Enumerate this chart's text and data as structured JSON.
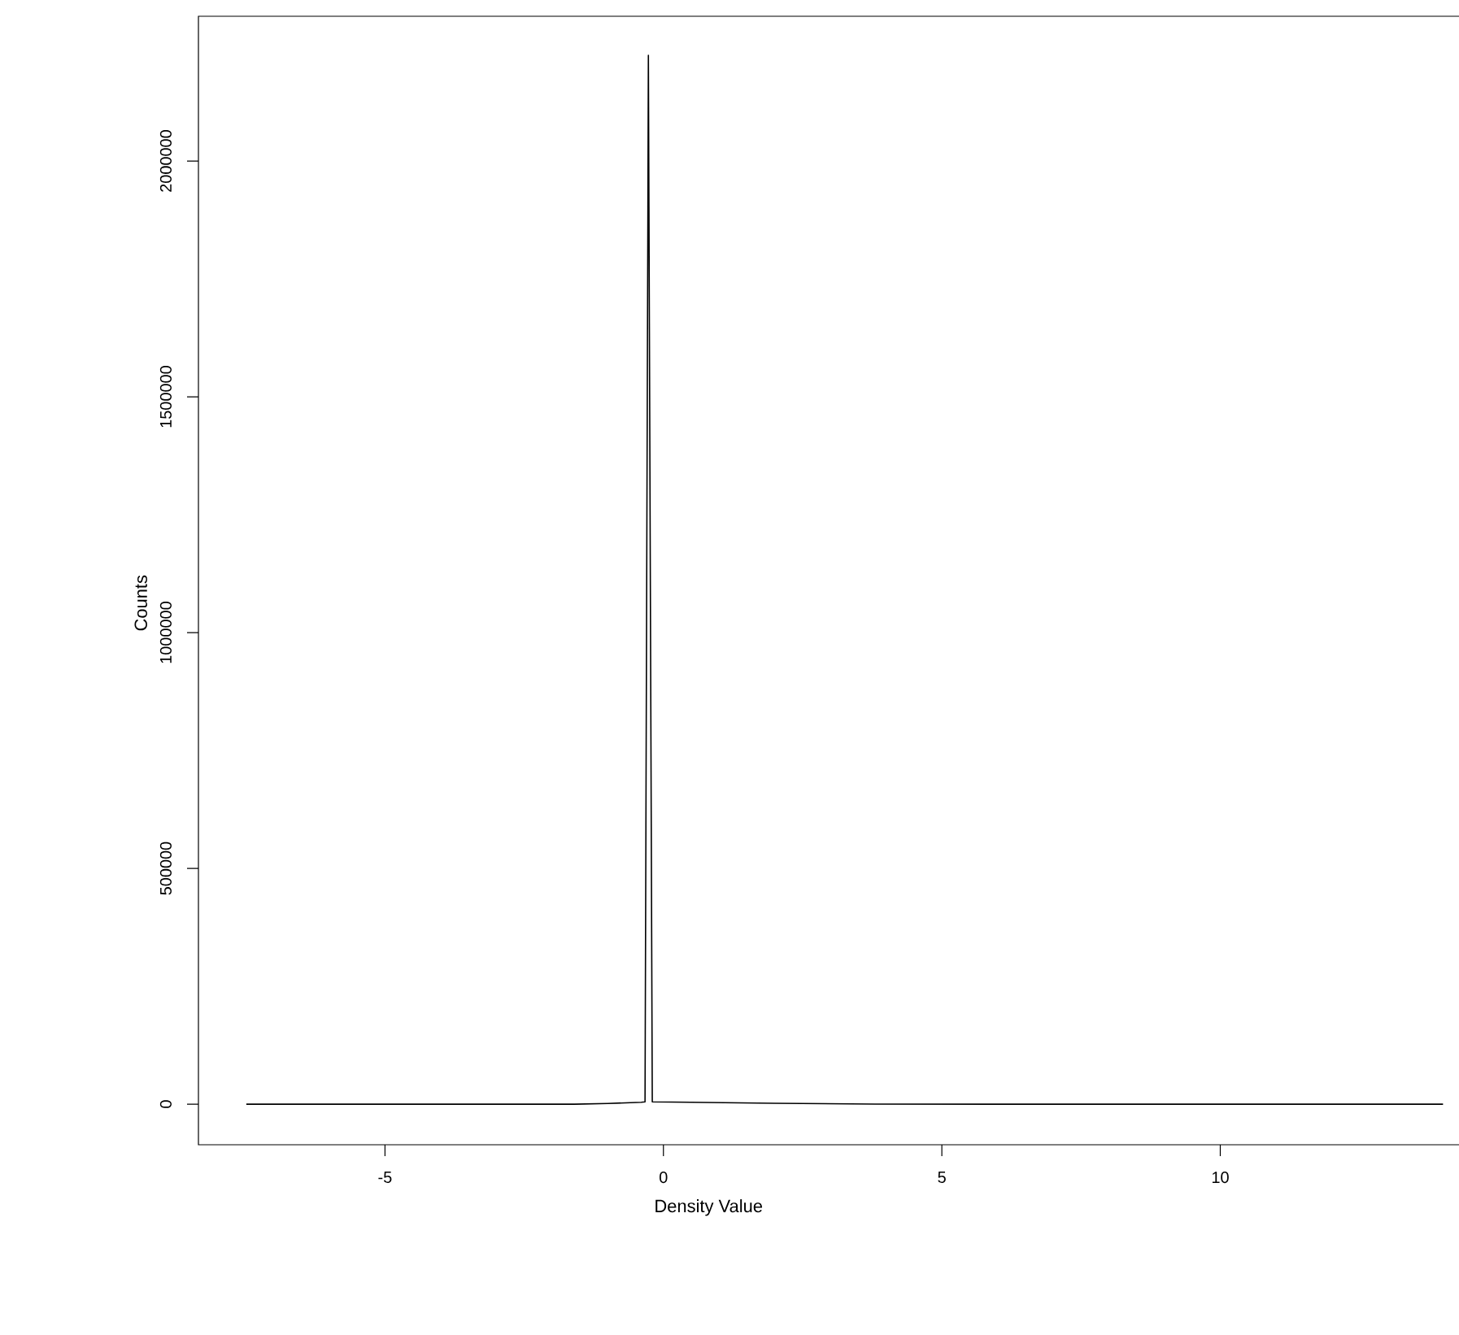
{
  "chart_data": {
    "type": "line",
    "xlabel": "Density Value",
    "ylabel": "Counts",
    "x": [
      -7.49,
      -1.6,
      -1.0,
      -0.4,
      -0.33,
      -0.27,
      -0.2,
      0.5,
      2,
      3.8,
      6,
      14.0
    ],
    "series": [
      {
        "color": "#000000",
        "values": [
          0,
          0,
          1500,
          4000,
          5000,
          2224000,
          5000,
          4000,
          2000,
          300,
          0,
          0
        ]
      }
    ],
    "xlim": [
      -8.35,
      14.55
    ],
    "ylim": [
      -86000,
      2307000
    ],
    "xticks": [
      -5,
      0,
      5,
      10
    ],
    "yticks": [
      0,
      500000,
      1000000,
      1500000,
      2000000
    ],
    "grid": false,
    "marker": "none",
    "line_style": "solid"
  }
}
